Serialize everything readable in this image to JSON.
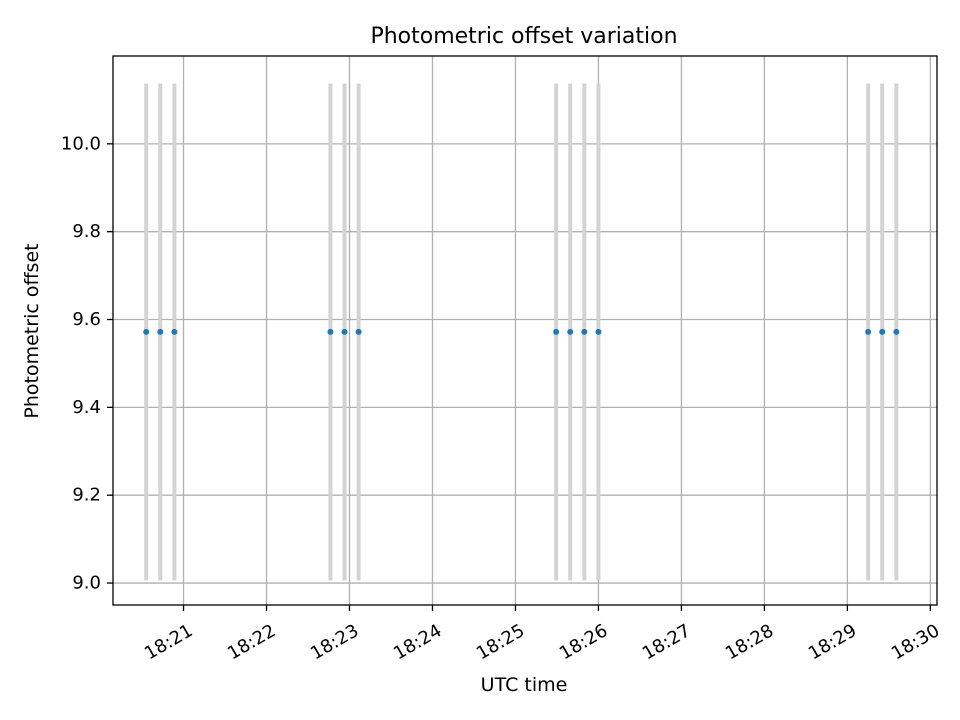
{
  "chart_data": {
    "type": "scatter",
    "title": "Photometric offset variation",
    "xlabel": "UTC time",
    "ylabel": "Photometric offset",
    "x_ticks": [
      "18:21",
      "18:22",
      "18:23",
      "18:24",
      "18:25",
      "18:26",
      "18:27",
      "18:28",
      "18:29",
      "18:30"
    ],
    "x_tick_minutes": [
      21,
      22,
      23,
      24,
      25,
      26,
      27,
      28,
      29,
      30
    ],
    "y_ticks": [
      "9.0",
      "9.2",
      "9.4",
      "9.6",
      "9.8",
      "10.0"
    ],
    "y_tick_values": [
      9.0,
      9.2,
      9.4,
      9.6,
      9.8,
      10.0
    ],
    "xlim_minutes": [
      20.15,
      30.08
    ],
    "ylim": [
      8.95,
      10.2
    ],
    "grid": true,
    "marker_color": "#1f77b4",
    "errorbar_color": "#d3d3d3",
    "series": [
      {
        "x": [
          "18:20:33",
          "18:20:43",
          "18:20:53",
          "18:22:46",
          "18:22:56",
          "18:23:06",
          "18:25:29",
          "18:25:39",
          "18:25:50",
          "18:26:00",
          "18:29:15",
          "18:29:25",
          "18:29:35"
        ],
        "x_minutes": [
          20.55,
          20.72,
          20.89,
          22.77,
          22.94,
          23.11,
          25.49,
          25.66,
          25.83,
          26.0,
          29.25,
          29.42,
          29.59
        ],
        "y": [
          9.572,
          9.572,
          9.572,
          9.572,
          9.572,
          9.572,
          9.572,
          9.572,
          9.572,
          9.572,
          9.572,
          9.572,
          9.572
        ],
        "yerr_low": [
          9.006,
          9.006,
          9.006,
          9.006,
          9.006,
          9.006,
          9.006,
          9.006,
          9.006,
          9.006,
          9.006,
          9.006,
          9.006
        ],
        "yerr_high": [
          10.137,
          10.137,
          10.137,
          10.137,
          10.137,
          10.137,
          10.137,
          10.137,
          10.137,
          10.137,
          10.137,
          10.137,
          10.137
        ]
      }
    ]
  }
}
